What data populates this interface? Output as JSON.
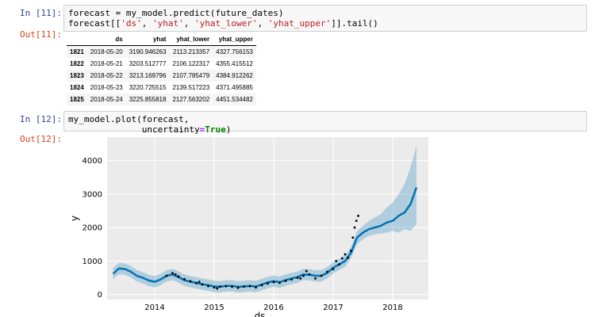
{
  "cells": {
    "in11": {
      "prompt": "In [11]:",
      "line1": "forecast = my_model.predict(future_dates)",
      "line2_pre": "forecast[[",
      "s1": "'ds'",
      "s2": "'yhat'",
      "s3": "'yhat_lower'",
      "s4": "'yhat_upper'",
      "line2_post": "]].tail()",
      "comma": ", "
    },
    "out11": {
      "prompt": "Out[11]:"
    },
    "in12": {
      "prompt": "In [12]:",
      "line1": "my_model.plot(forecast,",
      "line2_pre": "              uncertainty",
      "eq": "=",
      "kw": "True",
      "line2_post": ")"
    },
    "out12": {
      "prompt": "Out[12]:"
    }
  },
  "table": {
    "columns": [
      "",
      "ds",
      "yhat",
      "yhat_lower",
      "yhat_upper"
    ],
    "rows": [
      {
        "index": "1821",
        "ds": "2018-05-20",
        "yhat": "3190.946263",
        "yhat_lower": "2113.213357",
        "yhat_upper": "4327.756153"
      },
      {
        "index": "1822",
        "ds": "2018-05-21",
        "yhat": "3203.512777",
        "yhat_lower": "2106.122317",
        "yhat_upper": "4355.415512"
      },
      {
        "index": "1823",
        "ds": "2018-05-22",
        "yhat": "3213.169796",
        "yhat_lower": "2107.785479",
        "yhat_upper": "4384.912262"
      },
      {
        "index": "1824",
        "ds": "2018-05-23",
        "yhat": "3220.725515",
        "yhat_lower": "2139.517223",
        "yhat_upper": "4371.495885"
      },
      {
        "index": "1825",
        "ds": "2018-05-24",
        "yhat": "3225.855818",
        "yhat_lower": "2127.563202",
        "yhat_upper": "4451.534482"
      }
    ]
  },
  "chart_data": {
    "type": "line",
    "xlabel": "ds",
    "ylabel": "y",
    "xlim": [
      2013.2,
      2018.6
    ],
    "ylim": [
      -150,
      4700
    ],
    "xticks": [
      2014,
      2015,
      2016,
      2017,
      2018
    ],
    "yticks": [
      0,
      1000,
      2000,
      3000,
      4000
    ],
    "grid": true,
    "colors": {
      "forecast": "#0072b2",
      "interval": "#0072b2",
      "observed": "#000000",
      "background": "#ebebeb",
      "grid": "#ffffff"
    },
    "series": [
      {
        "role": "yhat",
        "x": [
          2013.3,
          2013.4,
          2013.5,
          2013.6,
          2013.7,
          2013.8,
          2013.9,
          2014.0,
          2014.1,
          2014.2,
          2014.3,
          2014.4,
          2014.5,
          2014.6,
          2014.7,
          2014.8,
          2014.9,
          2015.0,
          2015.1,
          2015.2,
          2015.3,
          2015.4,
          2015.5,
          2015.6,
          2015.7,
          2015.8,
          2015.9,
          2016.0,
          2016.1,
          2016.2,
          2016.3,
          2016.4,
          2016.5,
          2016.6,
          2016.7,
          2016.8,
          2016.9,
          2017.0,
          2017.1,
          2017.2,
          2017.3,
          2017.4,
          2017.5,
          2017.6,
          2017.7,
          2017.8,
          2017.9,
          2018.0,
          2018.1,
          2018.2,
          2018.3,
          2018.4
        ],
        "y": [
          620,
          780,
          760,
          680,
          560,
          500,
          420,
          380,
          450,
          560,
          600,
          520,
          430,
          380,
          350,
          310,
          280,
          240,
          230,
          260,
          260,
          230,
          240,
          260,
          240,
          300,
          360,
          400,
          370,
          430,
          480,
          520,
          600,
          590,
          560,
          560,
          650,
          800,
          900,
          1000,
          1250,
          1700,
          1850,
          1950,
          2000,
          2050,
          2150,
          2200,
          2350,
          2450,
          2700,
          3200
        ]
      },
      {
        "role": "yhat_lower",
        "x": [
          2013.3,
          2013.4,
          2013.5,
          2013.6,
          2013.7,
          2013.8,
          2013.9,
          2014.0,
          2014.1,
          2014.2,
          2014.3,
          2014.4,
          2014.5,
          2014.6,
          2014.7,
          2014.8,
          2014.9,
          2015.0,
          2015.1,
          2015.2,
          2015.3,
          2015.4,
          2015.5,
          2015.6,
          2015.7,
          2015.8,
          2015.9,
          2016.0,
          2016.1,
          2016.2,
          2016.3,
          2016.4,
          2016.5,
          2016.6,
          2016.7,
          2016.8,
          2016.9,
          2017.0,
          2017.1,
          2017.2,
          2017.3,
          2017.4,
          2017.5,
          2017.6,
          2017.7,
          2017.8,
          2017.9,
          2018.0,
          2018.1,
          2018.2,
          2018.3,
          2018.4
        ],
        "y": [
          450,
          610,
          590,
          510,
          390,
          330,
          250,
          210,
          280,
          390,
          430,
          350,
          260,
          210,
          180,
          140,
          110,
          70,
          60,
          90,
          90,
          60,
          70,
          90,
          70,
          130,
          190,
          230,
          200,
          260,
          310,
          350,
          430,
          420,
          390,
          390,
          480,
          630,
          730,
          830,
          1080,
          1500,
          1650,
          1750,
          1800,
          1820,
          1850,
          1900,
          1850,
          1950,
          1900,
          2100
        ]
      },
      {
        "role": "yhat_upper",
        "x": [
          2013.3,
          2013.4,
          2013.5,
          2013.6,
          2013.7,
          2013.8,
          2013.9,
          2014.0,
          2014.1,
          2014.2,
          2014.3,
          2014.4,
          2014.5,
          2014.6,
          2014.7,
          2014.8,
          2014.9,
          2015.0,
          2015.1,
          2015.2,
          2015.3,
          2015.4,
          2015.5,
          2015.6,
          2015.7,
          2015.8,
          2015.9,
          2016.0,
          2016.1,
          2016.2,
          2016.3,
          2016.4,
          2016.5,
          2016.6,
          2016.7,
          2016.8,
          2016.9,
          2017.0,
          2017.1,
          2017.2,
          2017.3,
          2017.4,
          2017.5,
          2017.6,
          2017.7,
          2017.8,
          2017.9,
          2018.0,
          2018.1,
          2018.2,
          2018.3,
          2018.4
        ],
        "y": [
          790,
          950,
          930,
          850,
          730,
          670,
          590,
          550,
          620,
          730,
          770,
          690,
          600,
          550,
          520,
          480,
          450,
          410,
          400,
          430,
          430,
          400,
          410,
          430,
          410,
          470,
          530,
          570,
          540,
          600,
          650,
          690,
          770,
          760,
          730,
          730,
          820,
          970,
          1070,
          1170,
          1420,
          1900,
          2050,
          2200,
          2300,
          2400,
          2600,
          2750,
          3000,
          3300,
          3800,
          4450
        ]
      },
      {
        "role": "observed",
        "x": [
          2014.2,
          2014.3,
          2014.35,
          2014.4,
          2014.5,
          2014.6,
          2014.7,
          2014.75,
          2014.8,
          2014.9,
          2015.0,
          2015.05,
          2015.1,
          2015.2,
          2015.3,
          2015.4,
          2015.5,
          2015.6,
          2015.7,
          2015.8,
          2015.9,
          2016.0,
          2016.1,
          2016.2,
          2016.3,
          2016.4,
          2016.45,
          2016.5,
          2016.55,
          2016.6,
          2016.7,
          2016.8,
          2016.9,
          2017.0,
          2017.05,
          2017.1,
          2017.15,
          2017.2,
          2017.25,
          2017.3,
          2017.33,
          2017.36,
          2017.39,
          2017.42
        ],
        "y": [
          560,
          640,
          600,
          540,
          460,
          400,
          340,
          380,
          300,
          250,
          210,
          180,
          240,
          250,
          230,
          200,
          240,
          250,
          210,
          280,
          330,
          370,
          350,
          410,
          450,
          500,
          480,
          560,
          700,
          600,
          480,
          560,
          680,
          760,
          1000,
          900,
          1080,
          1200,
          1100,
          1300,
          1700,
          2000,
          2200,
          2350
        ]
      }
    ]
  }
}
